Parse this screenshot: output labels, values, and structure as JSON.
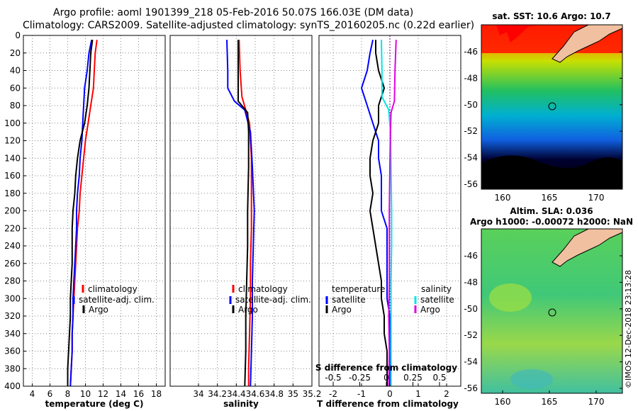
{
  "header": {
    "title1": "Argo profile: aoml 1901399_218 05-Feb-2016 50.07S 166.03E (DM data)",
    "title2": "Climatology: CARS2009. Satellite-adjusted climatology: synTS_20160205.nc (0.22d earlier)"
  },
  "colors": {
    "climatology": "#ff0000",
    "satellite": "#0000ff",
    "argo": "#000000",
    "satellite_salt": "#00e5e5",
    "argo_salt": "#e000e0"
  },
  "chart_data": [
    {
      "type": "line",
      "name": "temperature-panel",
      "xlabel": "temperature (deg C)",
      "ylabel": "",
      "xlim": [
        3,
        19
      ],
      "ylim": [
        400,
        0
      ],
      "xticks": [
        4,
        6,
        8,
        10,
        12,
        14,
        16,
        18
      ],
      "yticks": [
        0,
        20,
        40,
        60,
        80,
        100,
        120,
        140,
        160,
        180,
        200,
        220,
        240,
        260,
        280,
        300,
        320,
        340,
        360,
        380,
        400
      ],
      "legend": [
        "climatology",
        "satellite-adj. clim.",
        "Argo"
      ],
      "series": [
        {
          "name": "climatology",
          "color": "#ff0000",
          "points": [
            [
              11.3,
              5
            ],
            [
              11.1,
              20
            ],
            [
              11,
              40
            ],
            [
              10.9,
              60
            ],
            [
              10.6,
              80
            ],
            [
              10.3,
              100
            ],
            [
              10.0,
              120
            ],
            [
              9.8,
              140
            ],
            [
              9.6,
              160
            ],
            [
              9.4,
              180
            ],
            [
              9.3,
              200
            ],
            [
              9.1,
              220
            ],
            [
              9.0,
              240
            ],
            [
              8.9,
              260
            ],
            [
              8.8,
              280
            ],
            [
              8.7,
              300
            ],
            [
              8.6,
              320
            ],
            [
              8.5,
              340
            ],
            [
              8.5,
              360
            ],
            [
              8.4,
              380
            ],
            [
              8.3,
              400
            ]
          ]
        },
        {
          "name": "satellite-adj. clim.",
          "color": "#0000ff",
          "points": [
            [
              10.7,
              5
            ],
            [
              10.4,
              20
            ],
            [
              10.2,
              40
            ],
            [
              9.9,
              60
            ],
            [
              9.8,
              80
            ],
            [
              9.7,
              100
            ],
            [
              9.6,
              120
            ],
            [
              9.4,
              140
            ],
            [
              9.3,
              160
            ],
            [
              9.1,
              180
            ],
            [
              9.0,
              200
            ],
            [
              9.0,
              220
            ],
            [
              8.9,
              240
            ],
            [
              8.8,
              260
            ],
            [
              8.7,
              280
            ],
            [
              8.6,
              300
            ],
            [
              8.6,
              320
            ],
            [
              8.5,
              340
            ],
            [
              8.5,
              360
            ],
            [
              8.4,
              380
            ],
            [
              8.3,
              400
            ]
          ]
        },
        {
          "name": "Argo",
          "color": "#000000",
          "points": [
            [
              10.8,
              5
            ],
            [
              10.6,
              20
            ],
            [
              10.5,
              40
            ],
            [
              10.4,
              60
            ],
            [
              10.2,
              80
            ],
            [
              9.9,
              100
            ],
            [
              9.4,
              120
            ],
            [
              9.1,
              140
            ],
            [
              8.9,
              160
            ],
            [
              8.8,
              180
            ],
            [
              8.6,
              200
            ],
            [
              8.5,
              220
            ],
            [
              8.5,
              240
            ],
            [
              8.5,
              260
            ],
            [
              8.4,
              280
            ],
            [
              8.3,
              300
            ],
            [
              8.3,
              320
            ],
            [
              8.2,
              340
            ],
            [
              8.1,
              360
            ],
            [
              8.0,
              380
            ],
            [
              8.0,
              400
            ]
          ]
        }
      ]
    },
    {
      "type": "line",
      "name": "salinity-panel",
      "xlabel": "salinity",
      "ylabel": "",
      "xlim": [
        33.7,
        35.2
      ],
      "ylim": [
        400,
        0
      ],
      "xticks": [
        34,
        34.2,
        34.4,
        34.6,
        34.8,
        35,
        35.2
      ],
      "legend": [
        "climatology",
        "satellite-adj. clim.",
        "Argo"
      ],
      "series": [
        {
          "name": "climatology",
          "color": "#ff0000",
          "points": [
            [
              34.43,
              5
            ],
            [
              34.44,
              40
            ],
            [
              34.46,
              70
            ],
            [
              34.5,
              85
            ],
            [
              34.54,
              100
            ],
            [
              34.56,
              140
            ],
            [
              34.56,
              180
            ],
            [
              34.56,
              220
            ],
            [
              34.55,
              260
            ],
            [
              34.55,
              300
            ],
            [
              34.54,
              340
            ],
            [
              34.53,
              380
            ],
            [
              34.53,
              400
            ]
          ]
        },
        {
          "name": "satellite-adj. clim.",
          "color": "#0000ff",
          "points": [
            [
              34.3,
              5
            ],
            [
              34.31,
              40
            ],
            [
              34.31,
              60
            ],
            [
              34.38,
              75
            ],
            [
              34.49,
              85
            ],
            [
              34.55,
              110
            ],
            [
              34.57,
              150
            ],
            [
              34.59,
              200
            ],
            [
              34.58,
              240
            ],
            [
              34.57,
              280
            ],
            [
              34.57,
              320
            ],
            [
              34.56,
              360
            ],
            [
              34.55,
              400
            ]
          ]
        },
        {
          "name": "Argo",
          "color": "#000000",
          "points": [
            [
              34.42,
              5
            ],
            [
              34.42,
              40
            ],
            [
              34.42,
              75
            ],
            [
              34.52,
              88
            ],
            [
              34.53,
              110
            ],
            [
              34.53,
              150
            ],
            [
              34.52,
              200
            ],
            [
              34.52,
              240
            ],
            [
              34.51,
              280
            ],
            [
              34.5,
              320
            ],
            [
              34.5,
              360
            ],
            [
              34.49,
              400
            ]
          ]
        }
      ]
    },
    {
      "type": "line",
      "name": "difference-panel",
      "xlabel": "T difference from climatology",
      "top_axis_label": "S difference from climatology",
      "xlim": [
        -2.5,
        2.5
      ],
      "ylim": [
        400,
        0
      ],
      "xticks": [
        -2,
        -1,
        0,
        1,
        2
      ],
      "top_xticks": [
        "-0.5",
        "-0.25",
        "0",
        "0.25",
        "0.5"
      ],
      "legend_left_title": "temperature",
      "legend_right_title": "salinity",
      "legend": [
        "satellite",
        "Argo",
        "satellite",
        "Argo"
      ],
      "series": [
        {
          "name": "T satellite",
          "color": "#0000ff",
          "points": [
            [
              -0.6,
              5
            ],
            [
              -0.7,
              20
            ],
            [
              -0.8,
              40
            ],
            [
              -1.0,
              60
            ],
            [
              -0.8,
              80
            ],
            [
              -0.6,
              100
            ],
            [
              -0.4,
              120
            ],
            [
              -0.4,
              140
            ],
            [
              -0.3,
              160
            ],
            [
              -0.3,
              180
            ],
            [
              -0.3,
              200
            ],
            [
              -0.1,
              220
            ],
            [
              -0.1,
              240
            ],
            [
              -0.1,
              260
            ],
            [
              -0.1,
              280
            ],
            [
              -0.1,
              300
            ],
            [
              0,
              320
            ],
            [
              0,
              340
            ],
            [
              0,
              360
            ],
            [
              0,
              380
            ],
            [
              0,
              400
            ]
          ]
        },
        {
          "name": "T Argo",
          "color": "#000000",
          "points": [
            [
              -0.5,
              5
            ],
            [
              -0.5,
              20
            ],
            [
              -0.4,
              40
            ],
            [
              -0.2,
              60
            ],
            [
              -0.4,
              80
            ],
            [
              -0.4,
              100
            ],
            [
              -0.6,
              120
            ],
            [
              -0.7,
              140
            ],
            [
              -0.7,
              160
            ],
            [
              -0.6,
              180
            ],
            [
              -0.7,
              200
            ],
            [
              -0.6,
              220
            ],
            [
              -0.5,
              240
            ],
            [
              -0.4,
              260
            ],
            [
              -0.3,
              280
            ],
            [
              -0.3,
              300
            ],
            [
              -0.2,
              320
            ],
            [
              -0.2,
              340
            ],
            [
              -0.1,
              360
            ],
            [
              -0.1,
              380
            ],
            [
              -0.1,
              400
            ]
          ]
        },
        {
          "name": "S satellite",
          "color": "#00e5e5",
          "points": [
            [
              -0.15,
              5
            ],
            [
              -0.14,
              40
            ],
            [
              -0.14,
              70
            ],
            [
              -0.02,
              85
            ],
            [
              0.01,
              110
            ],
            [
              0.02,
              150
            ],
            [
              0.03,
              200
            ],
            [
              0.03,
              240
            ],
            [
              0.02,
              280
            ],
            [
              0.02,
              320
            ],
            [
              0.02,
              360
            ],
            [
              0.02,
              400
            ]
          ]
        },
        {
          "name": "S Argo",
          "color": "#e000e0",
          "points": [
            [
              0.11,
              5
            ],
            [
              0.09,
              40
            ],
            [
              0.08,
              75
            ],
            [
              0.02,
              88
            ],
            [
              0.01,
              110
            ],
            [
              0.0,
              150
            ],
            [
              -0.01,
              200
            ],
            [
              -0.01,
              240
            ],
            [
              -0.01,
              280
            ],
            [
              -0.02,
              320
            ],
            [
              -0.01,
              360
            ],
            [
              -0.02,
              400
            ]
          ]
        }
      ]
    }
  ],
  "maps": {
    "sst": {
      "title": "sat. SST: 10.6 Argo: 10.7",
      "lat_ticks": [
        "-46",
        "-48",
        "-50",
        "-52",
        "-54",
        "-56"
      ],
      "lon_ticks": [
        "160",
        "165",
        "170"
      ]
    },
    "sla": {
      "title1": "Altim. SLA: 0.036",
      "title2": "Argo h1000: -0.00072 h2000: NaN",
      "lat_ticks": [
        "-46",
        "-48",
        "-50",
        "-52",
        "-54",
        "-56"
      ],
      "lon_ticks": [
        "160",
        "165",
        "170"
      ]
    }
  },
  "credit": "©IMOS 12-Dec-2018 23:13:28",
  "panel_legend": {
    "climatology": "climatology",
    "satellite_adj": "satellite-adj. clim.",
    "argo": "Argo",
    "temperature": "temperature",
    "salinity": "salinity",
    "satellite": "satellite"
  }
}
